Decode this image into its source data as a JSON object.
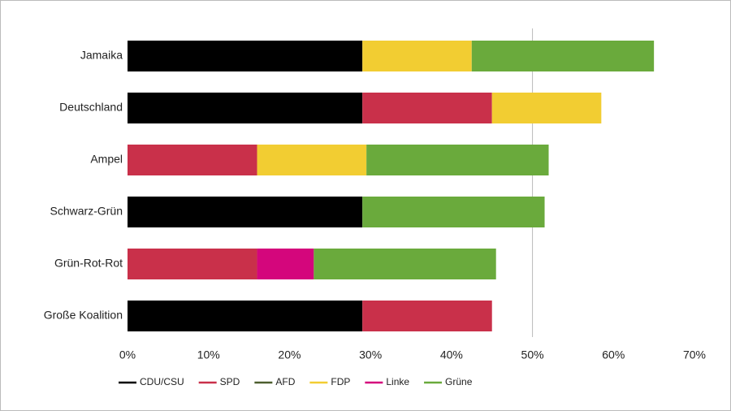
{
  "chart_data": {
    "type": "stacked-barh",
    "categories": [
      "Jamaika",
      "Deutschland",
      "Ampel",
      "Schwarz-Grün",
      "Grün-Rot-Rot",
      "Große Koalition"
    ],
    "series": [
      {
        "name": "CDU/CSU",
        "color": "#000000",
        "values": [
          29,
          29,
          0,
          29,
          0,
          29
        ]
      },
      {
        "name": "SPD",
        "color": "#c9304a",
        "values": [
          0,
          16,
          16,
          0,
          16,
          16
        ]
      },
      {
        "name": "AFD",
        "color": "#4d5e2e",
        "values": [
          0,
          0,
          0,
          0,
          0,
          0
        ]
      },
      {
        "name": "FDP",
        "color": "#f2cd32",
        "values": [
          13.5,
          13.5,
          13.5,
          0,
          0,
          0
        ]
      },
      {
        "name": "Linke",
        "color": "#d4067c",
        "values": [
          0,
          0,
          0,
          0,
          7,
          0
        ]
      },
      {
        "name": "Grüne",
        "color": "#6aaa3c",
        "values": [
          22.5,
          0,
          22.5,
          22.5,
          22.5,
          0
        ]
      }
    ],
    "xlim": [
      0,
      70
    ],
    "xticks": [
      {
        "value": 0,
        "label": "0%"
      },
      {
        "value": 10,
        "label": "10%"
      },
      {
        "value": 20,
        "label": "20%"
      },
      {
        "value": 30,
        "label": "30%"
      },
      {
        "value": 40,
        "label": "40%"
      },
      {
        "value": 50,
        "label": "50%"
      },
      {
        "value": 60,
        "label": "60%"
      },
      {
        "value": 70,
        "label": "70%"
      }
    ],
    "reference_line": 50
  }
}
